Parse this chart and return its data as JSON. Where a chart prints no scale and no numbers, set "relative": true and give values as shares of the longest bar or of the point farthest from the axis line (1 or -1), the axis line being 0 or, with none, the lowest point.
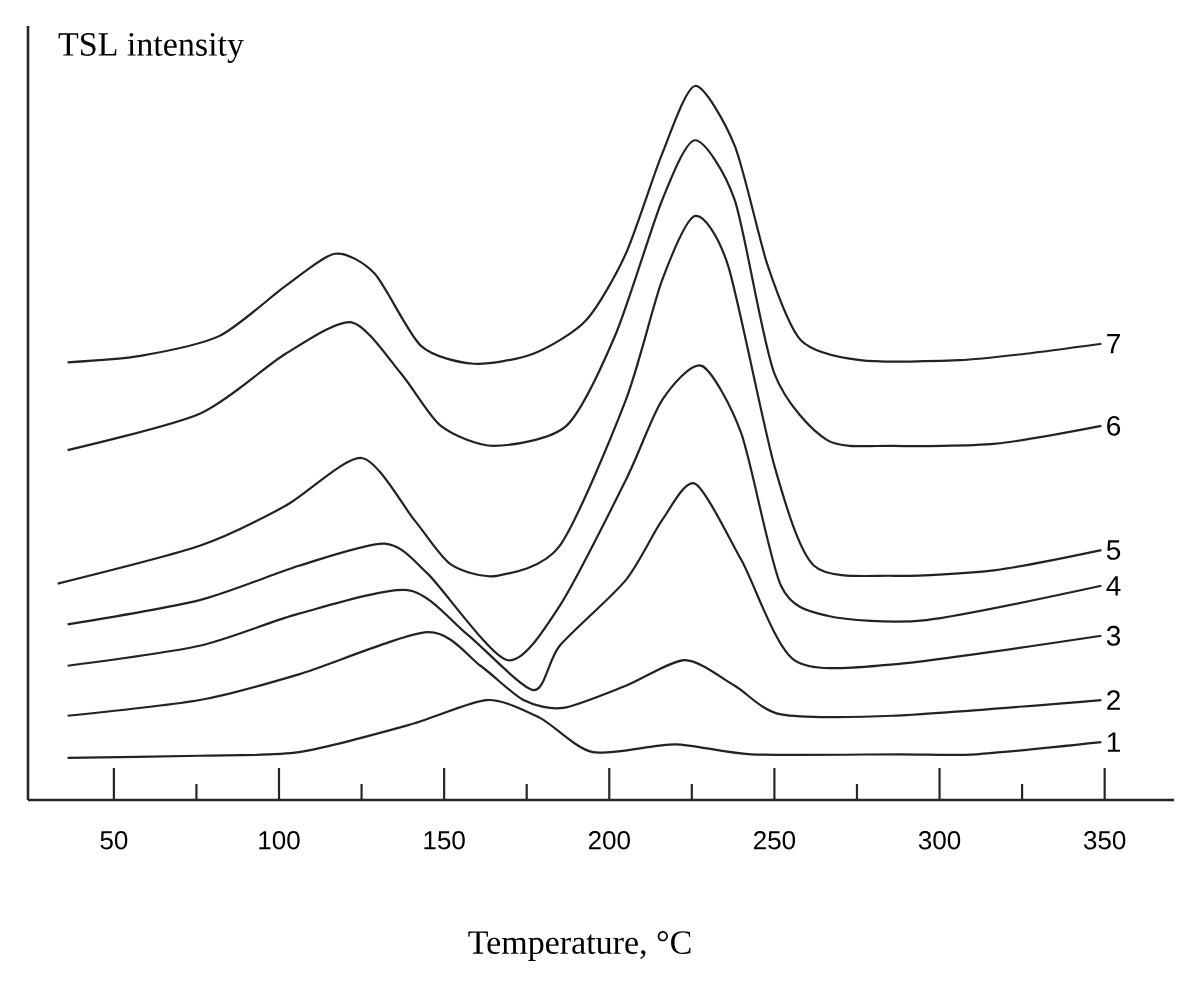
{
  "chart_data": {
    "type": "line",
    "relative": true,
    "xlabel": "Temperature, °C",
    "ylabel": "TSL intensity",
    "xlim": [
      24,
      371
    ],
    "xticks": [
      50,
      {
        "value": 75,
        "label": null
      },
      100,
      {
        "value": 125,
        "label": null
      },
      150,
      {
        "value": 175,
        "label": null
      },
      200,
      {
        "value": 225,
        "label": null
      },
      250,
      {
        "value": 275,
        "label": null
      },
      300,
      {
        "value": 325,
        "label": null
      },
      350
    ],
    "tick_labels": "x",
    "marker": "none",
    "line_style": "solid",
    "grid": false,
    "series": [
      {
        "name": "1",
        "color": "#222222",
        "x": [
          36,
          76,
          106,
          140,
          163,
          179,
          195,
          220,
          243,
          288,
          311,
          349
        ],
        "values": [
          0.059,
          0.062,
          0.067,
          0.106,
          0.14,
          0.115,
          0.067,
          0.078,
          0.064,
          0.064,
          0.064,
          0.081
        ]
      },
      {
        "name": "2",
        "color": "#222222",
        "x": [
          36,
          76,
          106,
          145,
          161,
          174,
          186,
          205,
          223,
          238,
          252,
          286,
          349
        ],
        "values": [
          0.118,
          0.14,
          0.176,
          0.235,
          0.188,
          0.14,
          0.129,
          0.16,
          0.196,
          0.16,
          0.12,
          0.118,
          0.14
        ]
      },
      {
        "name": "3",
        "color": "#222222",
        "x": [
          36,
          76,
          106,
          139,
          157,
          177,
          185,
          205,
          216,
          226,
          240,
          256,
          286,
          349
        ],
        "values": [
          0.188,
          0.216,
          0.261,
          0.294,
          0.232,
          0.154,
          0.216,
          0.308,
          0.392,
          0.443,
          0.336,
          0.196,
          0.19,
          0.23
        ]
      },
      {
        "name": "4",
        "color": "#222222",
        "x": [
          36,
          76,
          106,
          132,
          145,
          169,
          185,
          205,
          216,
          228,
          240,
          252,
          266,
          296,
          349
        ],
        "values": [
          0.246,
          0.28,
          0.328,
          0.359,
          0.317,
          0.196,
          0.272,
          0.448,
          0.56,
          0.608,
          0.513,
          0.3,
          0.258,
          0.252,
          0.3
        ]
      },
      {
        "name": "5",
        "color": "#222222",
        "x": [
          33,
          76,
          102,
          125,
          141,
          152,
          166,
          185,
          205,
          216,
          226,
          236,
          250,
          262,
          286,
          317,
          349
        ],
        "values": [
          0.303,
          0.356,
          0.412,
          0.479,
          0.392,
          0.33,
          0.314,
          0.356,
          0.56,
          0.728,
          0.818,
          0.748,
          0.468,
          0.328,
          0.314,
          0.322,
          0.35
        ]
      },
      {
        "name": "6",
        "color": "#222222",
        "x": [
          36,
          76,
          102,
          122,
          137,
          149,
          165,
          187,
          202,
          216,
          226,
          238,
          250,
          266,
          286,
          317,
          349
        ],
        "values": [
          0.49,
          0.541,
          0.625,
          0.669,
          0.597,
          0.524,
          0.496,
          0.524,
          0.653,
          0.84,
          0.924,
          0.84,
          0.597,
          0.504,
          0.496,
          0.499,
          0.524
        ]
      },
      {
        "name": "7",
        "color": "#222222",
        "x": [
          36,
          58,
          82,
          102,
          117,
          129,
          143,
          159,
          177,
          193,
          205,
          216,
          226,
          238,
          248,
          258,
          276,
          306,
          326,
          349
        ],
        "values": [
          0.613,
          0.622,
          0.65,
          0.72,
          0.765,
          0.737,
          0.636,
          0.611,
          0.625,
          0.672,
          0.765,
          0.905,
          1.0,
          0.916,
          0.748,
          0.644,
          0.616,
          0.616,
          0.625,
          0.639
        ]
      }
    ]
  }
}
